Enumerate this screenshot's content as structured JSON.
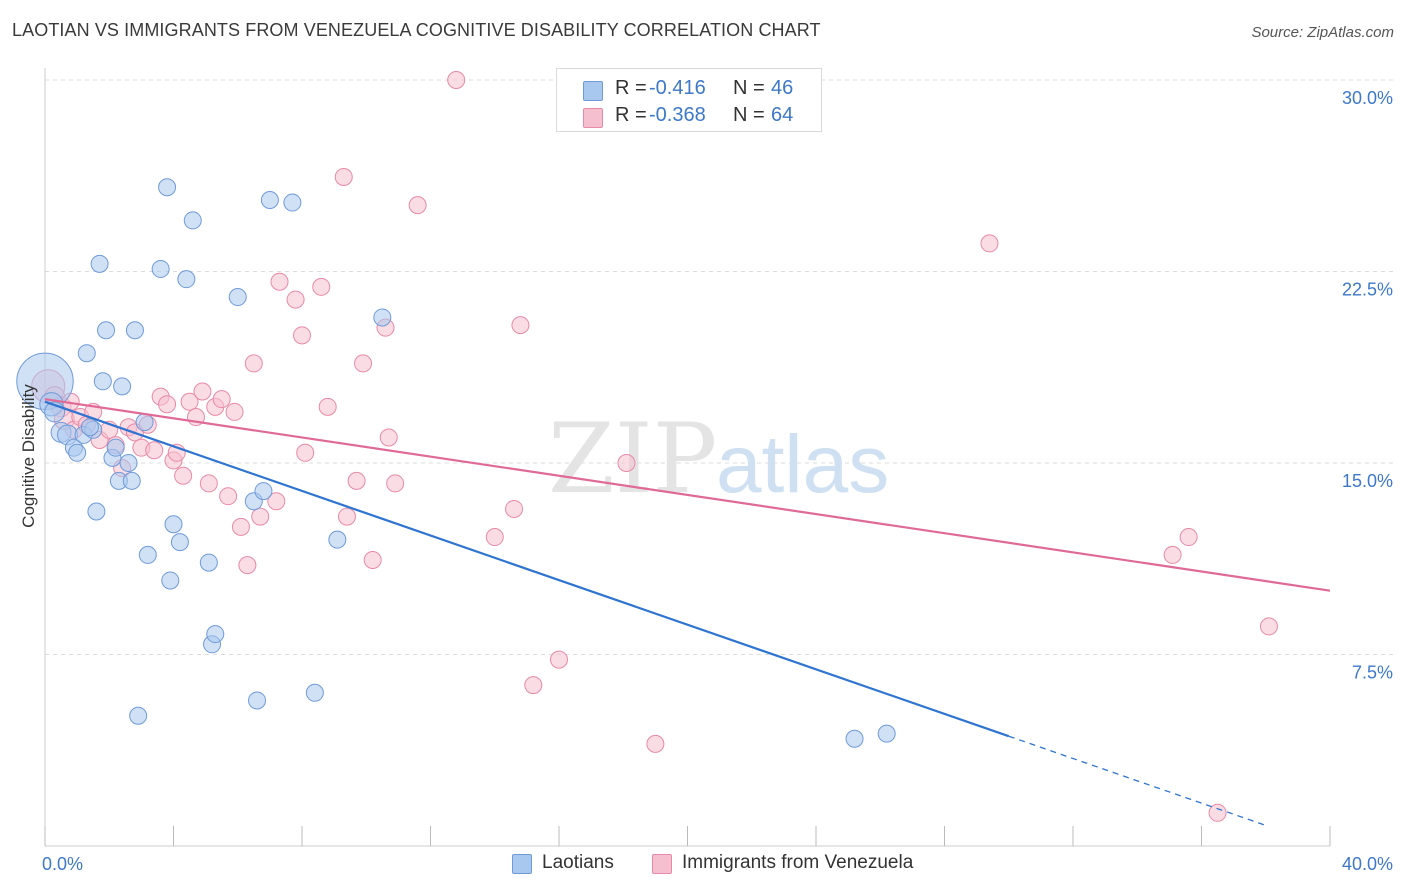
{
  "header": {
    "title": "LAOTIAN VS IMMIGRANTS FROM VENEZUELA COGNITIVE DISABILITY CORRELATION CHART",
    "source": "Source: ZipAtlas.com"
  },
  "legend": {
    "r_label": "R =",
    "n_label": "N =",
    "rows": [
      {
        "r": "-0.416",
        "n": "46"
      },
      {
        "r": "-0.368",
        "n": "64"
      }
    ]
  },
  "watermark": {
    "zip": "ZIP",
    "atlas": "atlas"
  },
  "colors": {
    "blue_fill": "#a9c8ef",
    "blue_stroke": "#6f9ad8",
    "blue_line": "#2f74d0",
    "pink_fill": "#f6bfd0",
    "pink_stroke": "#e88aa7",
    "pink_line": "#e06a96",
    "tick_text": "#3d78c9",
    "grid": "#dcdcdc"
  },
  "chart_data": {
    "type": "scatter",
    "title": "LAOTIAN VS IMMIGRANTS FROM VENEZUELA COGNITIVE DISABILITY CORRELATION CHART",
    "xlabel": "",
    "ylabel": "Cognitive Disability",
    "xlim": [
      0,
      40
    ],
    "ylim": [
      0,
      30
    ],
    "x_tick_labels": [
      "0.0%",
      "40.0%"
    ],
    "y_ticks": [
      7.5,
      15.0,
      22.5,
      30.0
    ],
    "y_tick_labels": [
      "7.5%",
      "15.0%",
      "22.5%",
      "30.0%"
    ],
    "grid": true,
    "legend_position": "top-center",
    "series": [
      {
        "name": "Laotians",
        "color": "blue",
        "trend": {
          "x0": 0,
          "y0": 17.4,
          "x1": 30.0,
          "y1": 4.3,
          "dash_to_x": 38.0
        },
        "points": [
          [
            0.0,
            18.2,
            1.7
          ],
          [
            0.2,
            17.3,
            0.7
          ],
          [
            0.3,
            17.0,
            0.6
          ],
          [
            0.5,
            16.2,
            0.6
          ],
          [
            0.7,
            16.1,
            0.6
          ],
          [
            0.9,
            15.6,
            0.5
          ],
          [
            1.0,
            15.4,
            0.5
          ],
          [
            1.2,
            16.1,
            0.5
          ],
          [
            1.5,
            16.3,
            0.5
          ],
          [
            1.6,
            13.1,
            0.5
          ],
          [
            1.7,
            22.8,
            0.5
          ],
          [
            1.8,
            18.2,
            0.5
          ],
          [
            1.9,
            20.2,
            0.5
          ],
          [
            1.3,
            19.3,
            0.5
          ],
          [
            2.1,
            15.2,
            0.5
          ],
          [
            2.2,
            15.6,
            0.5
          ],
          [
            2.3,
            14.3,
            0.5
          ],
          [
            2.4,
            18.0,
            0.5
          ],
          [
            2.6,
            15.0,
            0.5
          ],
          [
            2.7,
            14.3,
            0.5
          ],
          [
            2.8,
            20.2,
            0.5
          ],
          [
            3.1,
            16.6,
            0.5
          ],
          [
            3.2,
            11.4,
            0.5
          ],
          [
            2.9,
            5.1,
            0.5
          ],
          [
            3.6,
            22.6,
            0.5
          ],
          [
            3.8,
            25.8,
            0.5
          ],
          [
            3.9,
            10.4,
            0.5
          ],
          [
            4.0,
            12.6,
            0.5
          ],
          [
            4.2,
            11.9,
            0.5
          ],
          [
            4.4,
            22.2,
            0.5
          ],
          [
            4.6,
            24.5,
            0.5
          ],
          [
            5.1,
            11.1,
            0.5
          ],
          [
            5.2,
            7.9,
            0.5
          ],
          [
            5.3,
            8.3,
            0.5
          ],
          [
            6.0,
            21.5,
            0.5
          ],
          [
            6.6,
            5.7,
            0.5
          ],
          [
            6.5,
            13.5,
            0.5
          ],
          [
            6.8,
            13.9,
            0.5
          ],
          [
            7.0,
            25.3,
            0.5
          ],
          [
            7.7,
            25.2,
            0.5
          ],
          [
            8.4,
            6.0,
            0.5
          ],
          [
            9.1,
            12.0,
            0.5
          ],
          [
            10.5,
            20.7,
            0.5
          ],
          [
            1.4,
            16.4,
            0.5
          ],
          [
            25.2,
            4.2,
            0.5
          ],
          [
            26.2,
            4.4,
            0.5
          ]
        ]
      },
      {
        "name": "Immigrants from Venezuela",
        "color": "pink",
        "trend": {
          "x0": 0,
          "y0": 17.5,
          "x1": 40,
          "y1": 10.0
        },
        "points": [
          [
            0.1,
            18.0,
            1.0
          ],
          [
            0.3,
            17.6,
            0.6
          ],
          [
            0.5,
            17.2,
            0.6
          ],
          [
            0.6,
            16.7,
            0.6
          ],
          [
            0.8,
            17.4,
            0.5
          ],
          [
            0.9,
            16.3,
            0.5
          ],
          [
            1.1,
            16.8,
            0.5
          ],
          [
            1.3,
            16.5,
            0.5
          ],
          [
            1.5,
            17.0,
            0.5
          ],
          [
            1.7,
            15.9,
            0.5
          ],
          [
            2.0,
            16.3,
            0.5
          ],
          [
            2.2,
            15.7,
            0.5
          ],
          [
            2.4,
            14.8,
            0.5
          ],
          [
            2.6,
            16.4,
            0.5
          ],
          [
            2.8,
            16.2,
            0.5
          ],
          [
            3.0,
            15.6,
            0.5
          ],
          [
            3.2,
            16.5,
            0.5
          ],
          [
            3.4,
            15.5,
            0.5
          ],
          [
            3.6,
            17.6,
            0.5
          ],
          [
            3.8,
            17.3,
            0.5
          ],
          [
            4.0,
            15.1,
            0.5
          ],
          [
            4.1,
            15.4,
            0.5
          ],
          [
            4.3,
            14.5,
            0.5
          ],
          [
            4.5,
            17.4,
            0.5
          ],
          [
            4.7,
            16.8,
            0.5
          ],
          [
            4.9,
            17.8,
            0.5
          ],
          [
            5.1,
            14.2,
            0.5
          ],
          [
            5.3,
            17.2,
            0.5
          ],
          [
            5.5,
            17.5,
            0.5
          ],
          [
            5.7,
            13.7,
            0.5
          ],
          [
            5.9,
            17.0,
            0.5
          ],
          [
            6.1,
            12.5,
            0.5
          ],
          [
            6.3,
            11.0,
            0.5
          ],
          [
            6.5,
            18.9,
            0.5
          ],
          [
            6.7,
            12.9,
            0.5
          ],
          [
            7.2,
            13.5,
            0.5
          ],
          [
            7.3,
            22.1,
            0.5
          ],
          [
            7.8,
            21.4,
            0.5
          ],
          [
            8.0,
            20.0,
            0.5
          ],
          [
            8.1,
            15.4,
            0.5
          ],
          [
            8.6,
            21.9,
            0.5
          ],
          [
            8.8,
            17.2,
            0.5
          ],
          [
            9.3,
            26.2,
            0.5
          ],
          [
            9.4,
            12.9,
            0.5
          ],
          [
            9.7,
            14.3,
            0.5
          ],
          [
            9.9,
            18.9,
            0.5
          ],
          [
            10.2,
            11.2,
            0.5
          ],
          [
            10.6,
            20.3,
            0.5
          ],
          [
            10.7,
            16.0,
            0.5
          ],
          [
            10.9,
            14.2,
            0.5
          ],
          [
            11.6,
            25.1,
            0.5
          ],
          [
            12.8,
            30.0,
            0.5
          ],
          [
            14.0,
            12.1,
            0.5
          ],
          [
            14.8,
            20.4,
            0.5
          ],
          [
            14.6,
            13.2,
            0.5
          ],
          [
            15.2,
            6.3,
            0.5
          ],
          [
            16.0,
            7.3,
            0.5
          ],
          [
            18.1,
            15.0,
            0.5
          ],
          [
            19.0,
            4.0,
            0.5
          ],
          [
            29.4,
            23.6,
            0.5
          ],
          [
            35.1,
            11.4,
            0.5
          ],
          [
            35.6,
            12.1,
            0.5
          ],
          [
            38.1,
            8.6,
            0.5
          ],
          [
            36.5,
            1.3,
            0.5
          ]
        ]
      }
    ]
  }
}
